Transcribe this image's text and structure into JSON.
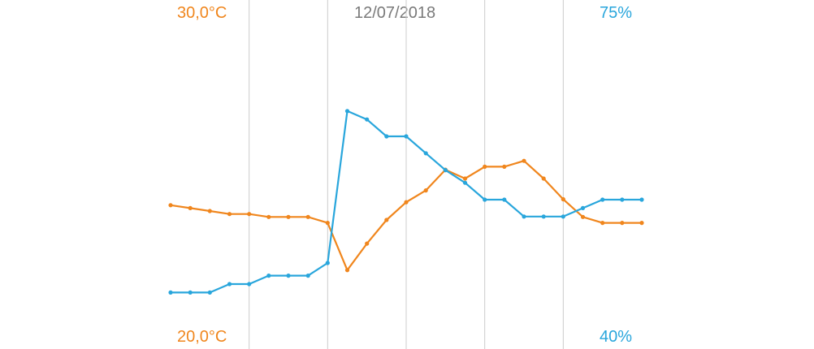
{
  "colors": {
    "temperature": "#f0861d",
    "humidity": "#29a6dc",
    "gridline": "#cccccc",
    "date_text": "#7a7a7a"
  },
  "labels": {
    "date": "12/07/2018",
    "temp_max": "30,0°C",
    "temp_min": "20,0°C",
    "humidity_max": "75%",
    "humidity_min": "40%"
  },
  "chart_data": {
    "type": "line",
    "title": "12/07/2018",
    "x": [
      0,
      1,
      2,
      3,
      4,
      5,
      6,
      7,
      8,
      9,
      10,
      11,
      12,
      13,
      14,
      15,
      16,
      17,
      18,
      19,
      20,
      21,
      22,
      23,
      24
    ],
    "series": [
      {
        "axis": "left",
        "unit": "°C",
        "values": [
          24.1,
          24.0,
          23.9,
          23.8,
          23.8,
          23.7,
          23.7,
          23.7,
          23.5,
          21.9,
          22.8,
          23.6,
          24.2,
          24.6,
          25.3,
          25.0,
          25.4,
          25.4,
          25.6,
          25.0,
          24.3,
          23.7,
          23.5,
          23.5,
          23.5
        ]
      },
      {
        "axis": "right",
        "unit": "%",
        "values": [
          44,
          44,
          44,
          45,
          45,
          46,
          46,
          46,
          47.5,
          65.5,
          64.5,
          62.5,
          62.5,
          60.5,
          58.5,
          57,
          55,
          55,
          53,
          53,
          53,
          54,
          55,
          55,
          55
        ]
      }
    ],
    "y_left_range": [
      20,
      30
    ],
    "y_right_range": [
      40,
      75
    ],
    "vertical_gridlines": [
      4,
      8,
      12,
      16,
      20
    ],
    "grid": "vertical-only",
    "legend": "none"
  }
}
